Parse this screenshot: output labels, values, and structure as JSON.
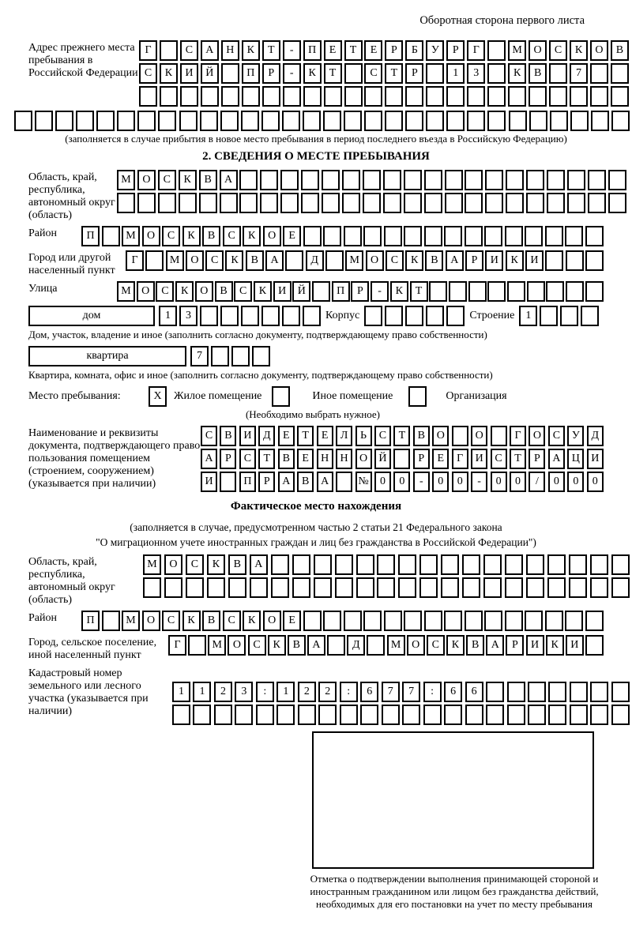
{
  "header": {
    "page_note": "Оборотная сторона первого листа"
  },
  "prev_address": {
    "label": "Адрес прежнего места пребывания в Российской Федерации",
    "row1": {
      "t": "Г САНКТ-ПЕТЕРБУРГ МОСКОВ",
      "n": 24
    },
    "row2": {
      "t": "СКИЙ ПР-КТ СТР 13 КВ 7",
      "n": 24
    },
    "row3": {
      "t": "",
      "n": 24
    },
    "row4": {
      "t": "",
      "n": 30
    },
    "note": "(заполняется в случае прибытия в новое место пребывания в период последнего въезда в Российскую Федерацию)"
  },
  "section2": {
    "heading": "2. СВЕДЕНИЯ О МЕСТЕ ПРЕБЫВАНИЯ",
    "region": {
      "label": "Область, край, республика, автономный округ (область)",
      "row1": {
        "t": "МОСКВА",
        "n": 25
      },
      "row2": {
        "t": "",
        "n": 25
      }
    },
    "district": {
      "label": "Район",
      "row1": {
        "t": "П МОСКВСКОЕ",
        "n": 26
      }
    },
    "city": {
      "label": "Город или другой населенный пункт",
      "row1": {
        "t": "Г МОСКВА Д МОСКВАРИКИ",
        "n": 24
      }
    },
    "street": {
      "label": "Улица",
      "row1": {
        "t": "МОСКОВСКИЙ ПР-КТ",
        "n": 25
      }
    },
    "house_line": {
      "house_box_label": "дом",
      "house_cells": {
        "t": "13",
        "n": 8
      },
      "korpus_label": "Корпус",
      "korpus_cells": {
        "t": "",
        "n": 5
      },
      "stroenie_label": "Строение",
      "stroenie_cells": {
        "t": "1",
        "n": 4
      }
    },
    "house_note": "Дом, участок, владение и иное (заполнить согласно документу, подтверждающему право собственности)",
    "apartment_line": {
      "box_label": "квартира",
      "cells": {
        "t": "7",
        "n": 4
      }
    },
    "apartment_note": "Квартира, комната, офис и иное (заполнить согласно документу, подтверждающему право собственности)",
    "stay": {
      "label": "Место пребывания:",
      "checkbox1": {
        "t": "X",
        "n": 1
      },
      "option1": "Жилое помещение",
      "checkbox2": {
        "t": "",
        "n": 1
      },
      "option2": "Иное помещение",
      "checkbox3": {
        "t": "",
        "n": 1
      },
      "option3": "Организация",
      "note": "(Необходимо выбрать нужное)"
    },
    "document": {
      "label": "Наименование и реквизиты документа, подтверждающего право пользования помещением (строением, сооружением) (указывается при наличии)",
      "row1": {
        "t": "СВИДЕТЕЛЬСТВО О ГОСУД",
        "n": 21
      },
      "row2": {
        "t": "АРСТВЕННОЙ РЕГИСТРАЦИ",
        "n": 21
      },
      "row3": {
        "t": "И ПРАВА №00-00-00/000",
        "n": 21
      }
    }
  },
  "actual": {
    "heading": "Фактическое место нахождения",
    "note_line1": "(заполняется в случае, предусмотренном частью 2 статьи 21 Федерального закона",
    "note_line2": "\"О миграционном учете иностранных граждан и лиц без гражданства в Российской Федерации\")",
    "region": {
      "label": "Область, край, республика, автономный округ (область)",
      "row1": {
        "t": "МОСКВА",
        "n": 23
      },
      "row2": {
        "t": "",
        "n": 23
      }
    },
    "district": {
      "label": "Район",
      "row1": {
        "t": "П МОСКВСКОЕ",
        "n": 26
      }
    },
    "city": {
      "label": "Город, сельское поселение, иной населенный пункт",
      "row1": {
        "t": "Г МОСКВА Д МОСКВАРИКИ",
        "n": 22
      }
    },
    "cadastral": {
      "label": "Кадастровый номер земельного или лесного участка (указывается при наличии)",
      "row1": {
        "t": "1123:122:677:66",
        "n": 22
      },
      "row2": {
        "t": "",
        "n": 22
      }
    },
    "stamp_box_note": "Отметка о подтверждении выполнения принимающей стороной и иностранным гражданином или лицом без гражданства действий, необходимых для его постановки на учет по месту пребывания"
  }
}
